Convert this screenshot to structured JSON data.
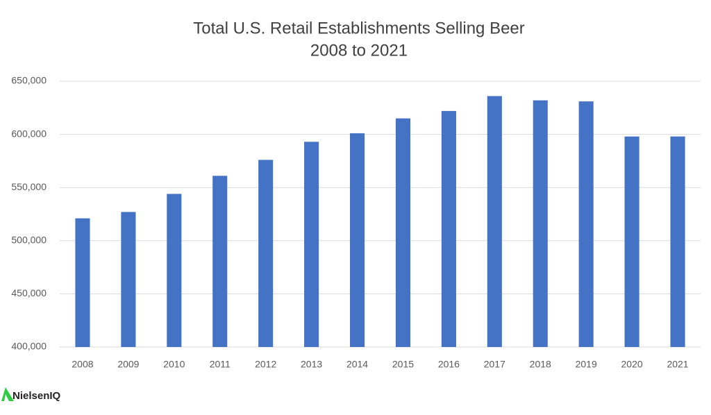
{
  "chart_data": {
    "type": "bar",
    "title": "Total U.S. Retail Establishments Selling Beer",
    "subtitle": "2008 to 2021",
    "categories": [
      "2008",
      "2009",
      "2010",
      "2011",
      "2012",
      "2013",
      "2014",
      "2015",
      "2016",
      "2017",
      "2018",
      "2019",
      "2020",
      "2021"
    ],
    "values": [
      521000,
      527000,
      544000,
      561000,
      576000,
      593000,
      601000,
      615000,
      622000,
      636000,
      632000,
      631000,
      598000,
      598000
    ],
    "color": "#4472c4",
    "ylim": [
      400000,
      650000
    ],
    "yticks": [
      {
        "value": 400000,
        "label": "400,000"
      },
      {
        "value": 450000,
        "label": "450,000"
      },
      {
        "value": 500000,
        "label": "500,000"
      },
      {
        "value": 550000,
        "label": "550,000"
      },
      {
        "value": 600000,
        "label": "600,000"
      },
      {
        "value": 650000,
        "label": "650,000"
      }
    ],
    "grid": true,
    "source": "NielsenIQ"
  }
}
